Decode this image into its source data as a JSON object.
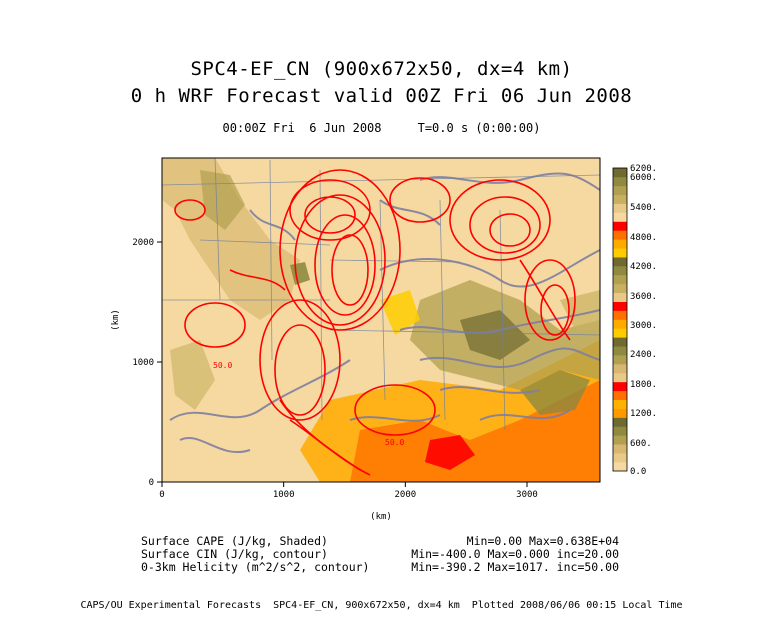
{
  "titles": {
    "line1": "SPC4-EF_CN (900x672x50, dx=4 km)",
    "line2": "0 h WRF Forecast valid 00Z Fri 06 Jun 2008",
    "subtitle": "00:00Z Fri  6 Jun 2008     T=0.0 s (0:00:00)"
  },
  "info": {
    "rows": [
      {
        "label": "Surface CAPE (J/kg, Shaded)",
        "stats": "Min=0.00 Max=0.638E+04"
      },
      {
        "label": "Surface CIN (J/kg, contour)",
        "stats": "Min=-400.0 Max=0.000 inc=20.00"
      },
      {
        "label": "0-3km Helicity (m^2/s^2, contour)",
        "stats": "Min=-390.2 Max=1017. inc=50.00"
      }
    ]
  },
  "footer": "CAPS/OU Experimental Forecasts  SPC4-EF_CN, 900x672x50, dx=4 km  Plotted 2008/06/06 00:15 Local Time",
  "colors": {
    "cape_low": "#f6d9a0",
    "cin_contour": "#7f7fa0",
    "helicity_contour": "#ff0000"
  },
  "chart_data": {
    "type": "heatmap",
    "xlabel": "(km)",
    "ylabel": "(km)",
    "xlim": [
      0,
      3600
    ],
    "ylim": [
      0,
      2700
    ],
    "xticks": [
      0,
      1000,
      2000,
      3000
    ],
    "yticks": [
      0,
      1000,
      2000
    ],
    "contour_labels": [
      "50.0",
      "50.0"
    ],
    "colorbar": {
      "ticks": [
        "0.0",
        "600.",
        "1200.",
        "1800.",
        "2400.",
        "3000.",
        "3600.",
        "4200.",
        "4800.",
        "5400.",
        "6000.",
        "6200."
      ],
      "colors": [
        "#f6d9a0",
        "#e8c988",
        "#d8b870",
        "#b0a050",
        "#8f8a40",
        "#6f6a30",
        "#ff9900",
        "#ffb000",
        "#ff7000",
        "#ff0000",
        "#e8c988",
        "#d8b870",
        "#b0a050",
        "#8f8a40",
        "#6f6a30",
        "#ffcc00",
        "#ffaa00",
        "#ff7000",
        "#ff0000",
        "#e8c988",
        "#c8b060",
        "#b0a050",
        "#8f8a40",
        "#6f6a30",
        "#ffcc00",
        "#ffaa00",
        "#ff7000",
        "#ff0000",
        "#f6d9a0",
        "#e8c988",
        "#c8b060",
        "#b0a050",
        "#8f8a40",
        "#6f6a30"
      ]
    }
  }
}
